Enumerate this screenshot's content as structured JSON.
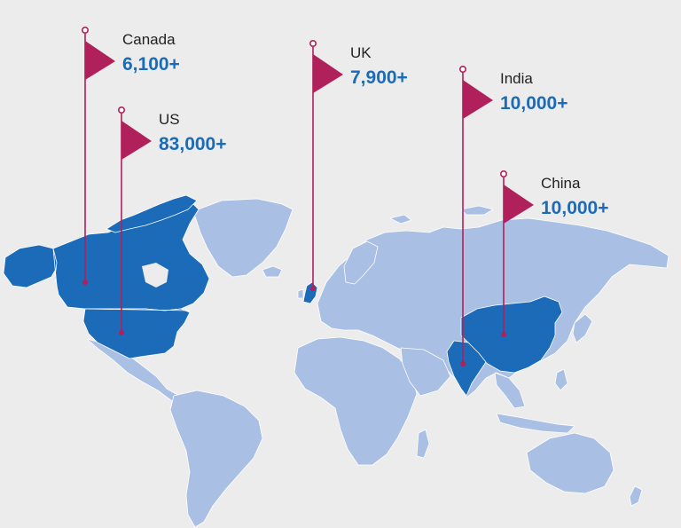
{
  "colors": {
    "background": "#ececec",
    "land": "#a9bfe3",
    "highlight": "#1b6bb8",
    "flag": "#b0205a",
    "name_text": "#222222",
    "count_text": "#1b6bb8"
  },
  "markers": [
    {
      "country": "Canada",
      "count": "6,100+"
    },
    {
      "country": "US",
      "count": "83,000+"
    },
    {
      "country": "UK",
      "count": "7,900+"
    },
    {
      "country": "India",
      "count": "10,000+"
    },
    {
      "country": "China",
      "count": "10,000+"
    }
  ]
}
